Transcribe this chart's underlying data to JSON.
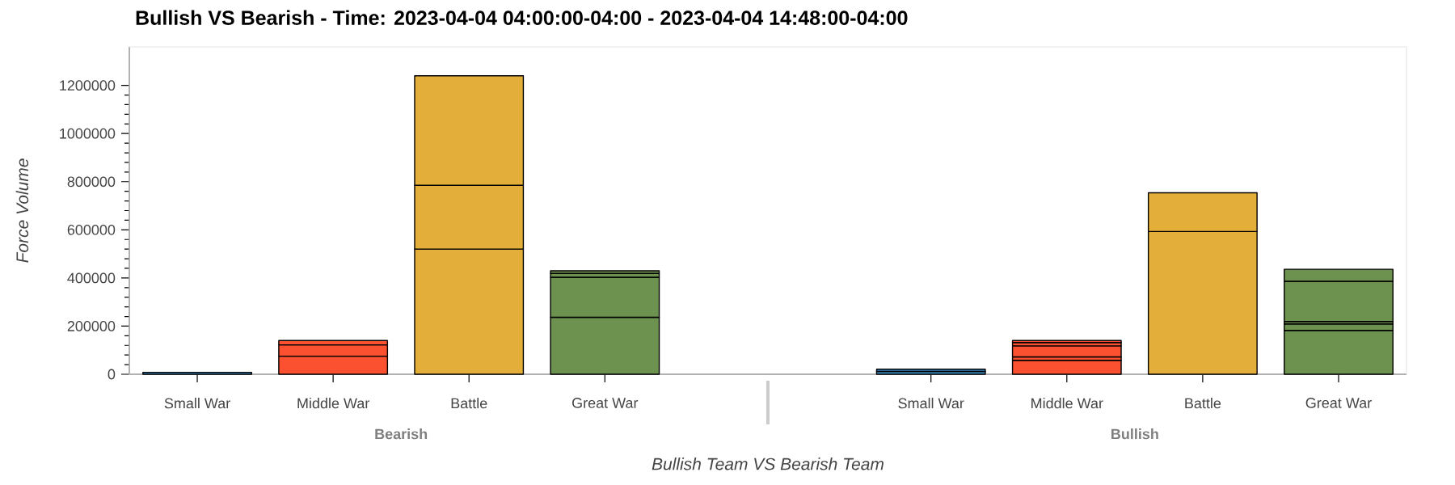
{
  "chart_data": {
    "type": "bar",
    "stacked": true,
    "title": "Bullish VS Bearish - Time:  2023-04-04 04:00:00-04:00 - 2023-04-04 14:48:00-04:00",
    "xlabel": "Bullish Team VS Bearish Team",
    "ylabel": "Force Volume",
    "categories": [
      "Small War",
      "Middle War",
      "Battle",
      "Great War",
      "Small War",
      "Middle War",
      "Battle",
      "Great War"
    ],
    "annotations": [
      "Bearish",
      "Bullish"
    ],
    "series": [
      {
        "colors": [
          "#3a8ec6",
          "#fc5130",
          "#e4ae3a",
          "#6d914e",
          "#3a8ec6",
          "#fc5130",
          "#e4ae3a",
          "#6d914e"
        ],
        "values": [
          8000,
          75000,
          520000,
          237000,
          12000,
          58000,
          593000,
          182000
        ]
      },
      {
        "colors": [
          "#3a8ec6",
          "#fc5130",
          "#e4ae3a",
          "#6d914e",
          "#3a8ec6",
          "#fc5130",
          "#e4ae3a",
          "#6d914e"
        ],
        "values": [
          null,
          47000,
          265000,
          166000,
          9000,
          14000,
          161000,
          27000
        ]
      },
      {
        "colors": [
          "#3a8ec6",
          "#fc5130",
          "#e4ae3a",
          "#6d914e",
          "#3a8ec6",
          "#fc5130",
          "#e4ae3a",
          "#6d914e"
        ],
        "values": [
          null,
          null,
          455000,
          16000,
          null,
          46000,
          null,
          10000
        ]
      },
      {
        "colors": [
          "#3a8ec6",
          "#fc5130",
          "#e4ae3a",
          "#6d914e",
          "#3a8ec6",
          "#fc5130",
          "#e4ae3a",
          "#6d914e"
        ],
        "values": [
          null,
          18000,
          null,
          11000,
          null,
          14000,
          null,
          167000
        ]
      },
      {
        "colors": [
          "#3a8ec6",
          "#fc5130",
          "#e4ae3a",
          "#6d914e",
          "#3a8ec6",
          "#fc5130",
          "#e4ae3a",
          "#6d914e"
        ],
        "values": [
          null,
          null,
          null,
          null,
          null,
          8000,
          null,
          50000
        ]
      }
    ],
    "ylim": [
      0,
      1360000
    ],
    "yticks": [
      0,
      200000,
      400000,
      600000,
      800000,
      1000000,
      1200000
    ]
  }
}
